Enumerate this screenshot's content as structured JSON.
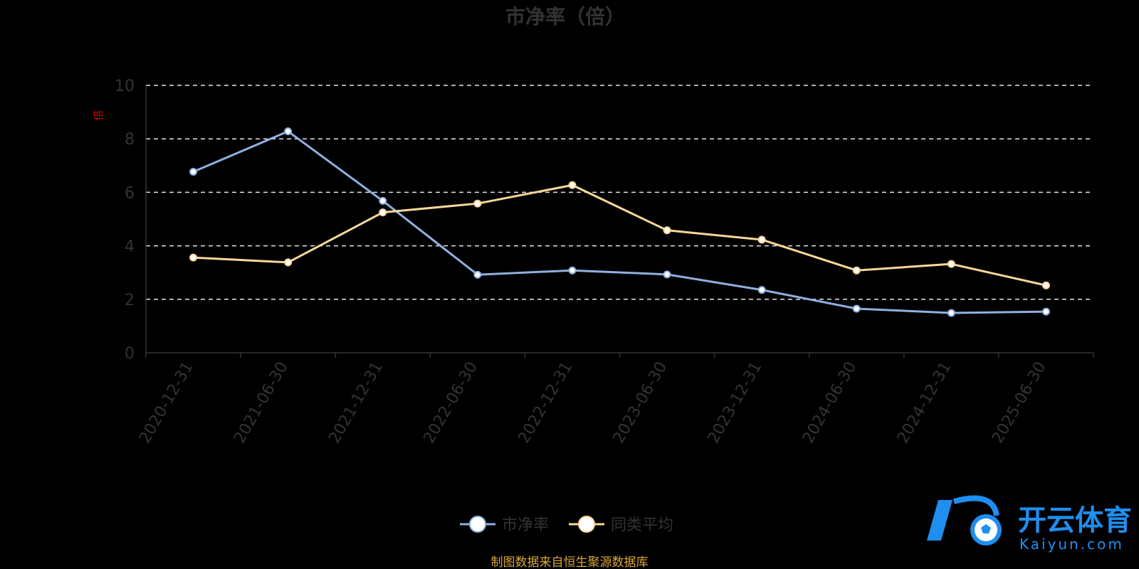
{
  "chart_data": {
    "type": "line",
    "title": "市净率（倍）",
    "ylabel": "倍",
    "categories": [
      "2020-12-31",
      "2021-06-30",
      "2021-12-31",
      "2022-06-30",
      "2022-12-31",
      "2023-06-30",
      "2023-12-31",
      "2024-06-30",
      "2024-12-31",
      "2025-06-30"
    ],
    "ylim": [
      0,
      10
    ],
    "yticks": [
      0,
      2,
      4,
      6,
      8,
      10
    ],
    "grid": true,
    "legend_position": "bottom-center",
    "series": [
      {
        "name": "市净率",
        "color": "#8fb0e0",
        "values": [
          6.77,
          8.28,
          5.68,
          2.92,
          3.08,
          2.93,
          2.35,
          1.65,
          1.49,
          1.54
        ]
      },
      {
        "name": "同类平均",
        "color": "#fad79a",
        "values": [
          3.56,
          3.38,
          5.25,
          5.58,
          6.27,
          4.58,
          4.23,
          3.08,
          3.32,
          2.52
        ]
      }
    ]
  },
  "source_note": "制图数据来自恒生聚源数据库",
  "watermark": {
    "name": "开云体育",
    "sub": "Kaiyun.com",
    "icon": "k-football-logo"
  }
}
